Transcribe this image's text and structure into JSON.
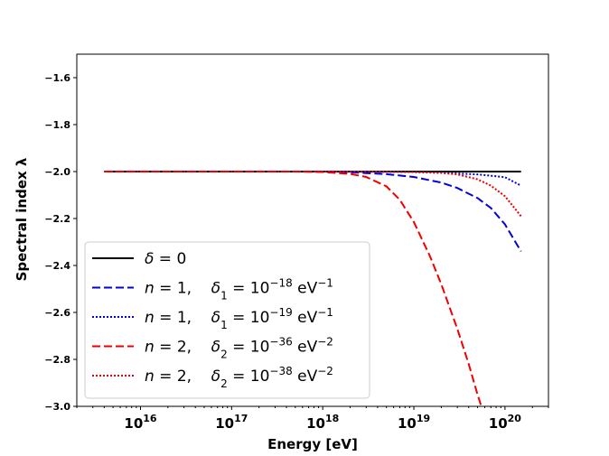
{
  "chart_data": {
    "type": "line",
    "title": "",
    "xlabel": "Energy [eV]",
    "ylabel": "Spectral index λ",
    "xscale": "log",
    "xlim": [
      2000000000000000.0,
      3e+20
    ],
    "ylim": [
      -3.0,
      -1.5
    ],
    "xticks": [
      {
        "value": 1e+16,
        "base": "10",
        "exp": "16"
      },
      {
        "value": 1e+17,
        "base": "10",
        "exp": "17"
      },
      {
        "value": 1e+18,
        "base": "10",
        "exp": "18"
      },
      {
        "value": 1e+19,
        "base": "10",
        "exp": "19"
      },
      {
        "value": 1e+20,
        "base": "10",
        "exp": "20"
      }
    ],
    "yticks": [
      {
        "value": -1.6,
        "label": "−1.6"
      },
      {
        "value": -1.8,
        "label": "−1.8"
      },
      {
        "value": -2.0,
        "label": "−2.0"
      },
      {
        "value": -2.2,
        "label": "−2.2"
      },
      {
        "value": -2.4,
        "label": "−2.4"
      },
      {
        "value": -2.6,
        "label": "−2.6"
      },
      {
        "value": -2.8,
        "label": "−2.8"
      },
      {
        "value": -3.0,
        "label": "−3.0"
      }
    ],
    "grid": false,
    "legend_position": "lower-left",
    "series": [
      {
        "id": "delta0",
        "legend": {
          "parts": [
            {
              "t": "δ"
            },
            {
              "t": " = 0"
            }
          ]
        },
        "color": "#000000",
        "dash": "solid",
        "x": [
          4000000000000000.0,
          1e+16,
          1e+17,
          1e+18,
          1e+19,
          1e+20,
          1.5e+20
        ],
        "y": [
          -2.0,
          -2.0,
          -2.0,
          -2.0,
          -2.0,
          -2.0,
          -2.0
        ]
      },
      {
        "id": "n1_1e-18",
        "legend": {
          "parts": [
            {
              "t": "n"
            },
            {
              "t": " = 1,    "
            },
            {
              "t": "δ"
            },
            {
              "sub": "1"
            },
            {
              "t": " = 10"
            },
            {
              "sup": "−18"
            },
            {
              "t": " eV"
            },
            {
              "sup": "−1"
            }
          ]
        },
        "color": "#0000dd",
        "dash": "dashed",
        "x": [
          4000000000000000.0,
          1e+16,
          1e+17,
          1e+18,
          2e+18,
          5e+18,
          1e+19,
          2e+19,
          3e+19,
          5e+19,
          7e+19,
          1e+20,
          1.5e+20
        ],
        "y": [
          -2.0,
          -2.0,
          -2.0,
          -2.0,
          -2.003,
          -2.011,
          -2.023,
          -2.047,
          -2.07,
          -2.113,
          -2.155,
          -2.225,
          -2.34
        ]
      },
      {
        "id": "n1_1e-19",
        "legend": {
          "parts": [
            {
              "t": "n"
            },
            {
              "t": " = 1,    "
            },
            {
              "t": "δ"
            },
            {
              "sub": "1"
            },
            {
              "t": " = 10"
            },
            {
              "sup": "−19"
            },
            {
              "t": " eV"
            },
            {
              "sup": "−1"
            }
          ]
        },
        "color": "#0000dd",
        "dash": "dotted",
        "x": [
          4000000000000000.0,
          1e+16,
          1e+17,
          1e+18,
          1e+19,
          2e+19,
          5e+19,
          1e+20,
          1.5e+20
        ],
        "y": [
          -2.0,
          -2.0,
          -2.0,
          -2.0,
          -2.002,
          -2.005,
          -2.012,
          -2.024,
          -2.06
        ]
      },
      {
        "id": "n2_1e-36",
        "legend": {
          "parts": [
            {
              "t": "n"
            },
            {
              "t": " = 2,    "
            },
            {
              "t": "δ"
            },
            {
              "sub": "2"
            },
            {
              "t": " = 10"
            },
            {
              "sup": "−36"
            },
            {
              "t": " eV"
            },
            {
              "sup": "−2"
            }
          ]
        },
        "color": "#ee0000",
        "dash": "dashed",
        "x": [
          4000000000000000.0,
          1e+16,
          1e+17,
          5e+17,
          1e+18,
          2e+18,
          3e+18,
          5e+18,
          7e+18,
          1e+19,
          1.5e+19,
          2e+19,
          3e+19,
          4e+19,
          5e+19,
          5.5e+19
        ],
        "y": [
          -2.0,
          -2.0,
          -2.0,
          -2.0,
          -2.002,
          -2.01,
          -2.023,
          -2.063,
          -2.12,
          -2.215,
          -2.36,
          -2.48,
          -2.67,
          -2.82,
          -2.95,
          -3.0
        ]
      },
      {
        "id": "n2_1e-38",
        "legend": {
          "parts": [
            {
              "t": "n"
            },
            {
              "t": " = 2,    "
            },
            {
              "t": "δ"
            },
            {
              "sub": "2"
            },
            {
              "t": " = 10"
            },
            {
              "sup": "−38"
            },
            {
              "t": " eV"
            },
            {
              "sup": "−2"
            }
          ]
        },
        "color": "#ee0000",
        "dash": "dotted",
        "x": [
          4000000000000000.0,
          1e+16,
          1e+17,
          1e+18,
          5e+18,
          1e+19,
          2e+19,
          3e+19,
          5e+19,
          7e+19,
          1e+20,
          1.5e+20
        ],
        "y": [
          -2.0,
          -2.0,
          -2.0,
          -2.0,
          -2.0,
          -2.002,
          -2.006,
          -2.012,
          -2.033,
          -2.06,
          -2.105,
          -2.19
        ]
      }
    ]
  }
}
